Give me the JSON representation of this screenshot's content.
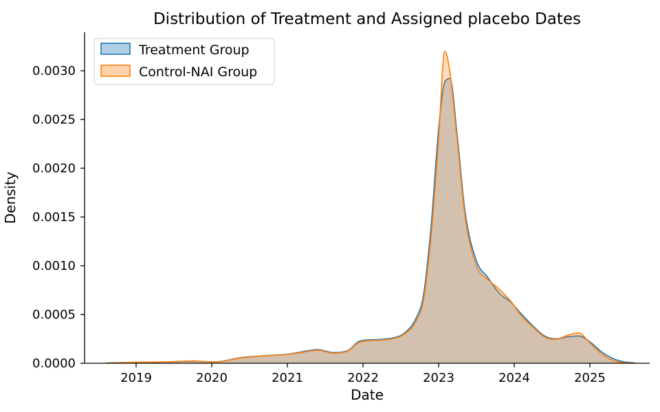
{
  "figure": {
    "title": "Distribution of Treatment and Assigned placebo Dates"
  },
  "chart_data": {
    "type": "area",
    "subtype": "kde-density",
    "title": "Distribution of Treatment and Assigned placebo Dates",
    "xlabel": "Date",
    "ylabel": "Density",
    "xlim": [
      2018.33,
      2025.79
    ],
    "ylim": [
      0,
      0.0034
    ],
    "grid": false,
    "legend_position": "upper-left",
    "xticks": [
      2019,
      2020,
      2021,
      2022,
      2023,
      2024,
      2025
    ],
    "xticklabels": [
      "2019",
      "2020",
      "2021",
      "2022",
      "2023",
      "2024",
      "2025"
    ],
    "yticks": [
      0.0,
      0.0005,
      0.001,
      0.0015,
      0.002,
      0.0025,
      0.003
    ],
    "yticklabels": [
      "0.0000",
      "0.0005",
      "0.0010",
      "0.0015",
      "0.0020",
      "0.0025",
      "0.0030"
    ],
    "x": [
      2018.6,
      2018.8,
      2019.0,
      2019.2,
      2019.4,
      2019.6,
      2019.75,
      2019.9,
      2020.05,
      2020.2,
      2020.4,
      2020.6,
      2020.8,
      2021.0,
      2021.2,
      2021.4,
      2021.6,
      2021.8,
      2021.95,
      2022.1,
      2022.25,
      2022.4,
      2022.55,
      2022.7,
      2022.8,
      2022.9,
      2023.0,
      2023.08,
      2023.15,
      2023.25,
      2023.35,
      2023.5,
      2023.65,
      2023.8,
      2023.95,
      2024.1,
      2024.25,
      2024.4,
      2024.55,
      2024.7,
      2024.85,
      2025.0,
      2025.15,
      2025.3,
      2025.45,
      2025.6
    ],
    "series": [
      {
        "name": "Treatment Group",
        "color": "#1f77b4",
        "fill_opacity": 0.27,
        "line_width": 1.7,
        "peak": {
          "x": 2023.1,
          "y": 0.00293
        },
        "values": [
          2e-06,
          6e-06,
          1e-05,
          1e-05,
          1.2e-05,
          1.8e-05,
          2.2e-05,
          1.6e-05,
          1.4e-05,
          3e-05,
          6e-05,
          7.2e-05,
          8.2e-05,
          9.2e-05,
          0.000118,
          0.00014,
          0.00011,
          0.00013,
          0.000225,
          0.00024,
          0.000245,
          0.00026,
          0.00031,
          0.00046,
          0.0007,
          0.0014,
          0.0024,
          0.00288,
          0.00292,
          0.0023,
          0.00155,
          0.00105,
          0.00088,
          0.00072,
          0.00063,
          0.0005,
          0.00038,
          0.00028,
          0.00025,
          0.00027,
          0.00028,
          0.00022,
          0.00012,
          5e-05,
          1.5e-05,
          2e-06
        ]
      },
      {
        "name": "Control-NAI Group",
        "color": "#ff7f0e",
        "fill_opacity": 0.27,
        "line_width": 1.7,
        "peak": {
          "x": 2023.08,
          "y": 0.0032
        },
        "values": [
          1e-06,
          5e-06,
          1e-05,
          1.2e-05,
          1.4e-05,
          2e-05,
          2.4e-05,
          1.7e-05,
          1.3e-05,
          2.8e-05,
          5.7e-05,
          7e-05,
          8e-05,
          9e-05,
          0.000112,
          0.000134,
          0.000104,
          0.000125,
          0.000215,
          0.000232,
          0.000238,
          0.000252,
          0.0003,
          0.00043,
          0.00065,
          0.0013,
          0.0023,
          0.0032,
          0.00298,
          0.00225,
          0.0015,
          0.001,
          0.00086,
          0.00076,
          0.00064,
          0.00048,
          0.00037,
          0.00027,
          0.000245,
          0.000285,
          0.00031,
          0.00021,
          0.0001,
          3e-05,
          5e-06,
          0.0
        ]
      }
    ]
  }
}
